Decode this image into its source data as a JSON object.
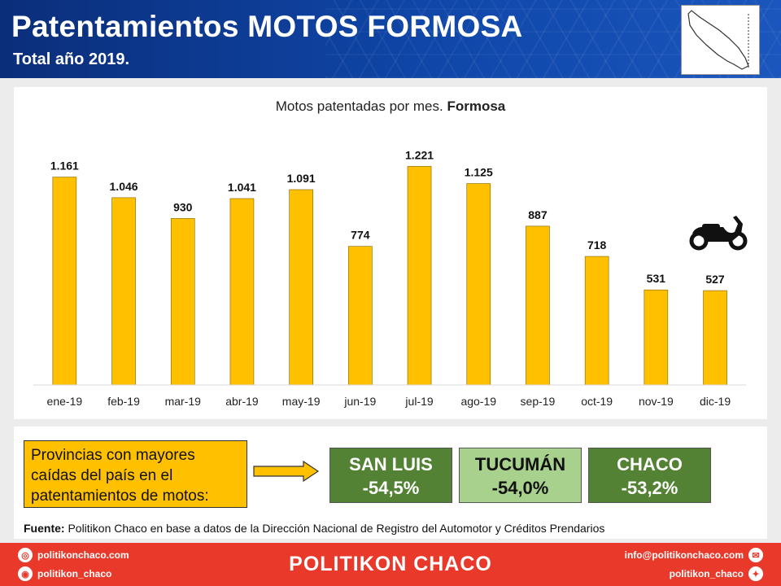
{
  "header": {
    "title": "Patentamientos MOTOS FORMOSA",
    "subtitle": "Total año 2019."
  },
  "chart_title": {
    "normal": "Motos patentadas por mes. ",
    "bold": "Formosa"
  },
  "chart_data": {
    "type": "bar",
    "title": "Motos patentadas por mes. Formosa",
    "categories": [
      "ene-19",
      "feb-19",
      "mar-19",
      "abr-19",
      "may-19",
      "jun-19",
      "jul-19",
      "ago-19",
      "sep-19",
      "oct-19",
      "nov-19",
      "dic-19"
    ],
    "values": [
      1161,
      1046,
      930,
      1041,
      1091,
      774,
      1221,
      1125,
      887,
      718,
      531,
      527
    ],
    "data_labels": [
      "1.161",
      "1.046",
      "930",
      "1.041",
      "1.091",
      "774",
      "1.221",
      "1.125",
      "887",
      "718",
      "531",
      "527"
    ],
    "ylim": [
      0,
      1250
    ],
    "bar_color": "#ffc000",
    "grid": false,
    "legend": false
  },
  "info": {
    "prov_lines": [
      "Provincias con mayores",
      "caídas del país en el",
      "patentamientos  de motos:"
    ],
    "stats": [
      {
        "name": "SAN LUIS",
        "value": "-54,5%",
        "style": "dark"
      },
      {
        "name": "TUCUMÁN",
        "value": "-54,0%",
        "style": "light"
      },
      {
        "name": "CHACO",
        "value": "-53,2%",
        "style": "dark"
      }
    ],
    "source_bold": "Fuente:",
    "source_text": " Politikon Chaco en base a datos de la Dirección Nacional de Registro del Automotor  y Créditos Prendarios"
  },
  "footer": {
    "brand": "POLITIKON CHACO",
    "web": "politikonchaco.com",
    "instagram": "politikon_chaco",
    "email": "info@politikonchaco.com",
    "twitter": "politikon_chaco"
  },
  "colors": {
    "header": "#0f46a8",
    "bar": "#ffc000",
    "stat_dark": "#548235",
    "stat_light": "#a9d18e",
    "footer": "#e8392b"
  },
  "icons": [
    "province-map-icon",
    "motorcycle-icon",
    "web-icon",
    "instagram-icon",
    "email-icon",
    "twitter-icon"
  ]
}
